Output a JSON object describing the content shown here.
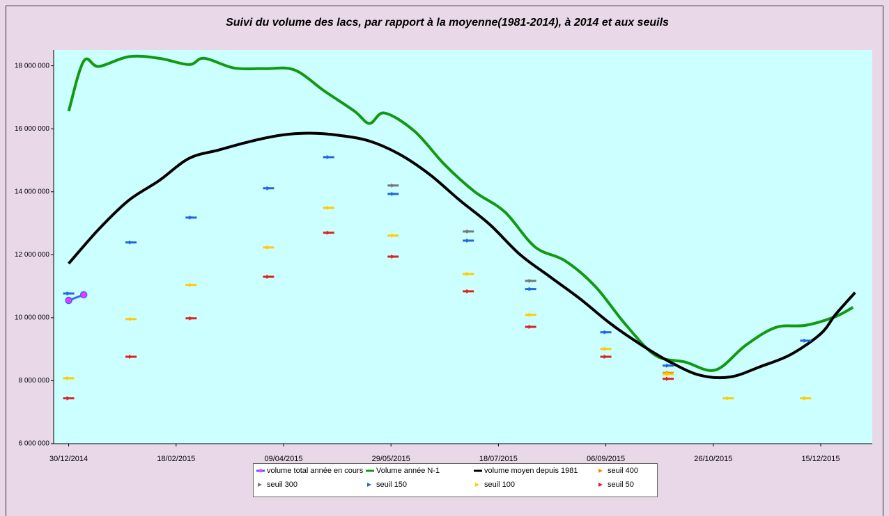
{
  "chart_data": {
    "type": "line",
    "title": "Suivi du volume des lacs, par rapport à la moyenne(1981-2014), à 2014 et aux seuils",
    "xlim": [
      "23/12/2014",
      "08/01/2016"
    ],
    "xticks": [
      "30/12/2014",
      "18/02/2015",
      "09/04/2015",
      "29/05/2015",
      "18/07/2015",
      "06/09/2015",
      "26/10/2015",
      "15/12/2015"
    ],
    "ylim": [
      6000000,
      18500000
    ],
    "yticks": [
      {
        "value": 6000000,
        "label": "6 000 000"
      },
      {
        "value": 8000000,
        "label": "8 000 000"
      },
      {
        "value": 10000000,
        "label": "10 000 000"
      },
      {
        "value": 12000000,
        "label": "12 000 000"
      },
      {
        "value": 14000000,
        "label": "14 000 000"
      },
      {
        "value": 16000000,
        "label": "16 000 000"
      },
      {
        "value": 18000000,
        "label": "18 000 000"
      }
    ],
    "series": [
      {
        "name": "volume total année en cours",
        "color": "#3366ff",
        "marker_color": "#ff33ff",
        "style": "line-marker",
        "x": [
          "30/12/2014",
          "06/01/2015"
        ],
        "values": [
          10550000,
          10730000
        ]
      },
      {
        "name": "Volume année N-1",
        "color": "#119911",
        "style": "line",
        "x": [
          "30/12/2014",
          "06/01/2015",
          "13/01/2015",
          "27/01/2015",
          "10/02/2015",
          "24/02/2015",
          "03/03/2015",
          "17/03/2015",
          "31/03/2015",
          "14/04/2015",
          "28/04/2015",
          "12/05/2015",
          "19/05/2015",
          "26/05/2015",
          "09/06/2015",
          "23/06/2015",
          "07/07/2015",
          "21/07/2015",
          "04/08/2015",
          "18/08/2015",
          "01/09/2015",
          "15/09/2015",
          "29/09/2015",
          "13/10/2015",
          "27/10/2015",
          "10/11/2015",
          "24/11/2015",
          "08/12/2015",
          "22/12/2015",
          "30/12/2015"
        ],
        "values": [
          16560000,
          18150000,
          17980000,
          18290000,
          18240000,
          18040000,
          18240000,
          17930000,
          17910000,
          17870000,
          17200000,
          16560000,
          16170000,
          16500000,
          15920000,
          14860000,
          14000000,
          13360000,
          12250000,
          11810000,
          11000000,
          9800000,
          8810000,
          8590000,
          8340000,
          9120000,
          9690000,
          9760000,
          10040000,
          10330000
        ]
      },
      {
        "name": "volume moyen depuis 1981",
        "color": "#000000",
        "style": "line",
        "x": [
          "30/12/2014",
          "13/01/2015",
          "27/01/2015",
          "10/02/2015",
          "24/02/2015",
          "10/03/2015",
          "24/03/2015",
          "07/04/2015",
          "21/04/2015",
          "05/05/2015",
          "19/05/2015",
          "02/06/2015",
          "16/06/2015",
          "30/06/2015",
          "14/07/2015",
          "28/07/2015",
          "11/08/2015",
          "25/08/2015",
          "08/09/2015",
          "22/09/2015",
          "06/10/2015",
          "20/10/2015",
          "03/11/2015",
          "17/11/2015",
          "01/12/2015",
          "15/12/2015",
          "22/12/2015",
          "31/12/2015"
        ],
        "values": [
          11720000,
          12810000,
          13730000,
          14350000,
          15060000,
          15330000,
          15590000,
          15790000,
          15860000,
          15790000,
          15610000,
          15190000,
          14550000,
          13730000,
          12960000,
          12010000,
          11300000,
          10600000,
          9820000,
          9160000,
          8590000,
          8170000,
          8120000,
          8450000,
          8830000,
          9490000,
          10110000,
          10800000
        ]
      },
      {
        "name": "seuil 400",
        "color": "#ff8800",
        "style": "marker",
        "x": [
          "05/10/2015"
        ],
        "values": [
          8250000
        ]
      },
      {
        "name": "seuil 300",
        "color": "#777777",
        "style": "marker",
        "x": [
          "30/05/2015",
          "04/07/2015",
          "02/08/2015"
        ],
        "values": [
          14200000,
          12740000,
          11170000
        ]
      },
      {
        "name": "seuil  150",
        "color": "#2266dd",
        "style": "marker",
        "x": [
          "30/12/2014",
          "28/01/2015",
          "25/02/2015",
          "02/04/2015",
          "30/04/2015",
          "30/05/2015",
          "04/07/2015",
          "02/08/2015",
          "06/09/2015",
          "05/10/2015",
          "08/12/2015"
        ],
        "values": [
          10770000,
          12390000,
          13180000,
          14110000,
          15100000,
          13930000,
          12450000,
          10910000,
          9540000,
          8480000,
          9270000
        ]
      },
      {
        "name": "seuil 100",
        "color": "#ffcc00",
        "style": "marker",
        "x": [
          "30/12/2014",
          "28/01/2015",
          "25/02/2015",
          "02/04/2015",
          "30/04/2015",
          "30/05/2015",
          "04/07/2015",
          "02/08/2015",
          "06/09/2015",
          "05/10/2015",
          "02/11/2015",
          "08/12/2015"
        ],
        "values": [
          8080000,
          9960000,
          11040000,
          12230000,
          13490000,
          12610000,
          11390000,
          10090000,
          9010000,
          8210000,
          7440000,
          7440000
        ]
      },
      {
        "name": "seuil 50",
        "color": "#dd2222",
        "style": "marker",
        "x": [
          "30/12/2014",
          "28/01/2015",
          "25/02/2015",
          "02/04/2015",
          "30/04/2015",
          "30/05/2015",
          "04/07/2015",
          "02/08/2015",
          "06/09/2015",
          "05/10/2015"
        ],
        "values": [
          7440000,
          8760000,
          9980000,
          11300000,
          12700000,
          11940000,
          10840000,
          9710000,
          8760000,
          8060000
        ]
      }
    ]
  }
}
